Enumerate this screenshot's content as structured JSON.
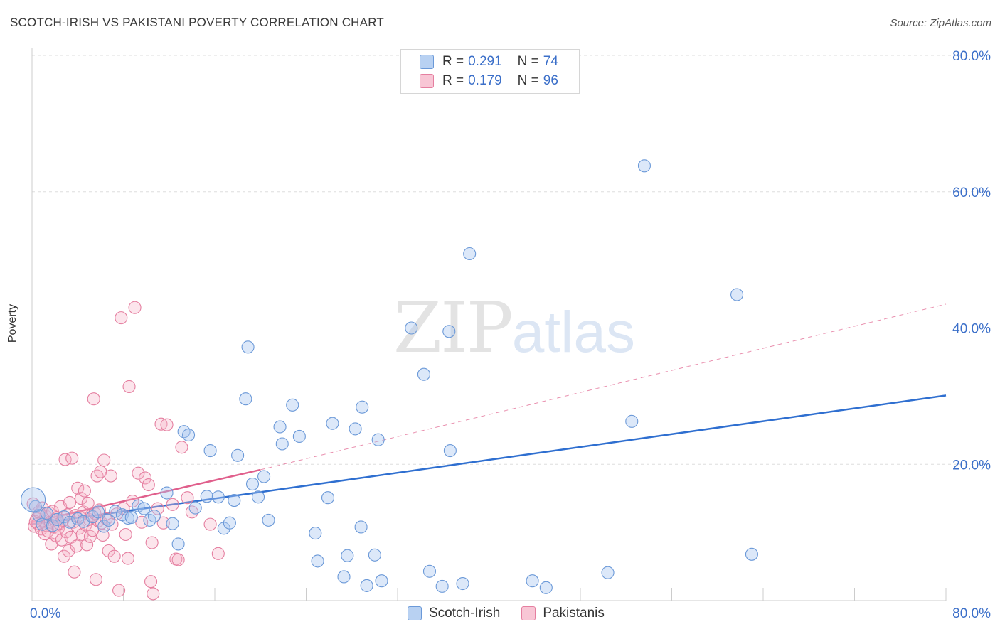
{
  "header": {
    "title": "SCOTCH-IRISH VS PAKISTANI POVERTY CORRELATION CHART",
    "source": "Source: ZipAtlas.com"
  },
  "watermark": {
    "part1": "ZIP",
    "part2": "atlas"
  },
  "legend_top": {
    "rows": [
      {
        "r_label": "R =",
        "r_value": "0.291",
        "n_label": "N =",
        "n_value": "74"
      },
      {
        "r_label": "R =",
        "r_value": "0.179",
        "n_label": "N =",
        "n_value": "96"
      }
    ]
  },
  "legend_bottom": {
    "items": [
      "Scotch-Irish",
      "Pakistanis"
    ]
  },
  "colors": {
    "blue_fill": "#a7c6ef",
    "blue_stroke": "#6b99d8",
    "blue_line": "#2f6fd0",
    "pink_fill": "#f5b4c8",
    "pink_stroke": "#e57fa0",
    "pink_line": "#e05f8c",
    "axis_text": "#3b6fc9",
    "grid": "#dddddd"
  },
  "chart_data": {
    "type": "scatter",
    "title": "SCOTCH-IRISH VS PAKISTANI POVERTY CORRELATION CHART",
    "xlabel": "",
    "ylabel": "Poverty",
    "xlim": [
      0,
      80
    ],
    "ylim": [
      0,
      80
    ],
    "x_tick_labels": [
      "0.0%",
      "80.0%"
    ],
    "y_tick_labels": [
      "20.0%",
      "40.0%",
      "60.0%",
      "80.0%"
    ],
    "y_ticks": [
      20,
      40,
      60,
      80
    ],
    "series": [
      {
        "name": "Scotch-Irish",
        "color": "#6b99d8",
        "points": [
          [
            0.3,
            13.8
          ],
          [
            0.6,
            12.5
          ],
          [
            0.9,
            11.2
          ],
          [
            1.3,
            12.8
          ],
          [
            1.8,
            11.0
          ],
          [
            2.2,
            11.9
          ],
          [
            2.8,
            12.3
          ],
          [
            3.3,
            11.5
          ],
          [
            4.0,
            12.0
          ],
          [
            4.5,
            11.6
          ],
          [
            5.3,
            12.3
          ],
          [
            5.8,
            13.0
          ],
          [
            6.3,
            10.9
          ],
          [
            6.7,
            11.8
          ],
          [
            7.3,
            13.1
          ],
          [
            7.9,
            12.6
          ],
          [
            8.4,
            12.1
          ],
          [
            8.7,
            12.2
          ],
          [
            9.3,
            13.9
          ],
          [
            9.8,
            13.5
          ],
          [
            10.3,
            11.8
          ],
          [
            10.7,
            12.4
          ],
          [
            11.8,
            15.8
          ],
          [
            12.3,
            11.3
          ],
          [
            12.8,
            8.3
          ],
          [
            13.3,
            24.8
          ],
          [
            13.7,
            24.3
          ],
          [
            14.3,
            13.6
          ],
          [
            15.3,
            15.3
          ],
          [
            15.6,
            22.0
          ],
          [
            16.3,
            15.2
          ],
          [
            16.8,
            10.6
          ],
          [
            17.3,
            11.4
          ],
          [
            17.7,
            14.7
          ],
          [
            18.0,
            21.3
          ],
          [
            18.7,
            29.6
          ],
          [
            18.9,
            37.2
          ],
          [
            19.3,
            17.1
          ],
          [
            19.8,
            15.2
          ],
          [
            20.3,
            18.2
          ],
          [
            20.7,
            11.8
          ],
          [
            21.7,
            25.5
          ],
          [
            21.9,
            23.0
          ],
          [
            22.8,
            28.7
          ],
          [
            23.4,
            24.1
          ],
          [
            24.8,
            9.9
          ],
          [
            25.0,
            5.8
          ],
          [
            25.9,
            15.1
          ],
          [
            26.3,
            26.0
          ],
          [
            27.3,
            3.5
          ],
          [
            27.6,
            6.6
          ],
          [
            28.3,
            25.2
          ],
          [
            28.8,
            10.8
          ],
          [
            28.9,
            28.4
          ],
          [
            29.3,
            2.2
          ],
          [
            30.0,
            6.7
          ],
          [
            30.3,
            23.6
          ],
          [
            30.6,
            2.9
          ],
          [
            33.2,
            40.0
          ],
          [
            34.3,
            33.2
          ],
          [
            34.8,
            4.3
          ],
          [
            35.9,
            2.1
          ],
          [
            36.5,
            39.5
          ],
          [
            36.6,
            22.0
          ],
          [
            37.7,
            2.5
          ],
          [
            38.3,
            50.9
          ],
          [
            43.8,
            2.9
          ],
          [
            45.0,
            1.9
          ],
          [
            50.4,
            4.1
          ],
          [
            52.5,
            26.3
          ],
          [
            53.6,
            63.8
          ],
          [
            61.7,
            44.9
          ],
          [
            63.0,
            6.8
          ],
          [
            0.1,
            14.8
          ]
        ],
        "trend": {
          "x0": 0,
          "y0": 11.2,
          "x1": 80,
          "y1": 30.1
        }
      },
      {
        "name": "Pakistanis",
        "color": "#e57fa0",
        "points": [
          [
            0.2,
            10.9
          ],
          [
            0.4,
            12.0
          ],
          [
            0.5,
            11.3
          ],
          [
            0.7,
            12.8
          ],
          [
            0.8,
            10.5
          ],
          [
            0.9,
            13.6
          ],
          [
            1.0,
            11.7
          ],
          [
            1.1,
            9.8
          ],
          [
            1.2,
            12.4
          ],
          [
            1.3,
            11.0
          ],
          [
            1.4,
            10.2
          ],
          [
            1.5,
            12.9
          ],
          [
            1.6,
            11.5
          ],
          [
            1.7,
            8.3
          ],
          [
            1.8,
            13.1
          ],
          [
            1.9,
            10.8
          ],
          [
            2.0,
            11.9
          ],
          [
            2.1,
            9.5
          ],
          [
            2.2,
            12.2
          ],
          [
            2.3,
            10.6
          ],
          [
            2.4,
            11.3
          ],
          [
            2.5,
            13.8
          ],
          [
            2.6,
            8.9
          ],
          [
            2.7,
            11.8
          ],
          [
            2.8,
            6.5
          ],
          [
            2.9,
            20.7
          ],
          [
            3.0,
            10.1
          ],
          [
            3.1,
            12.6
          ],
          [
            3.2,
            7.3
          ],
          [
            3.3,
            14.4
          ],
          [
            3.4,
            9.3
          ],
          [
            3.5,
            20.9
          ],
          [
            3.6,
            11.5
          ],
          [
            3.7,
            4.2
          ],
          [
            3.8,
            12.5
          ],
          [
            3.9,
            8.0
          ],
          [
            4.0,
            16.5
          ],
          [
            4.1,
            10.6
          ],
          [
            4.2,
            12.2
          ],
          [
            4.3,
            15.0
          ],
          [
            4.4,
            9.7
          ],
          [
            4.5,
            13.0
          ],
          [
            4.6,
            16.1
          ],
          [
            4.7,
            11.1
          ],
          [
            4.8,
            8.2
          ],
          [
            4.9,
            14.3
          ],
          [
            5.0,
            11.9
          ],
          [
            5.1,
            9.4
          ],
          [
            5.2,
            12.5
          ],
          [
            5.3,
            10.3
          ],
          [
            5.4,
            29.6
          ],
          [
            5.5,
            12.8
          ],
          [
            5.6,
            3.1
          ],
          [
            5.7,
            18.3
          ],
          [
            5.8,
            11.7
          ],
          [
            5.9,
            13.3
          ],
          [
            6.0,
            18.9
          ],
          [
            6.1,
            11.4
          ],
          [
            6.2,
            9.6
          ],
          [
            6.3,
            20.6
          ],
          [
            6.5,
            12.0
          ],
          [
            6.7,
            7.3
          ],
          [
            6.9,
            18.3
          ],
          [
            7.0,
            11.2
          ],
          [
            7.2,
            6.5
          ],
          [
            7.4,
            12.7
          ],
          [
            7.6,
            1.5
          ],
          [
            7.8,
            41.5
          ],
          [
            8.0,
            13.5
          ],
          [
            8.2,
            9.7
          ],
          [
            8.4,
            6.2
          ],
          [
            8.5,
            31.4
          ],
          [
            8.8,
            14.6
          ],
          [
            9.0,
            43.0
          ],
          [
            9.3,
            18.7
          ],
          [
            9.6,
            11.5
          ],
          [
            9.9,
            18.0
          ],
          [
            10.2,
            17.0
          ],
          [
            10.4,
            2.8
          ],
          [
            10.5,
            8.5
          ],
          [
            10.6,
            1.0
          ],
          [
            11.0,
            13.5
          ],
          [
            11.3,
            25.9
          ],
          [
            11.5,
            11.4
          ],
          [
            11.8,
            25.8
          ],
          [
            12.3,
            14.1
          ],
          [
            12.6,
            6.1
          ],
          [
            12.8,
            6.0
          ],
          [
            13.1,
            22.5
          ],
          [
            13.6,
            15.1
          ],
          [
            14.0,
            13.0
          ],
          [
            15.6,
            11.2
          ],
          [
            16.3,
            6.9
          ],
          [
            0.1,
            14.2
          ],
          [
            0.3,
            11.6
          ],
          [
            0.6,
            13.0
          ]
        ],
        "trend": {
          "x0": 0,
          "y0": 11.5,
          "x1": 20,
          "y1": 19.2
        },
        "trend_extended": {
          "x0": 20,
          "y0": 19.2,
          "x1": 80,
          "y1": 43.5
        }
      }
    ]
  }
}
